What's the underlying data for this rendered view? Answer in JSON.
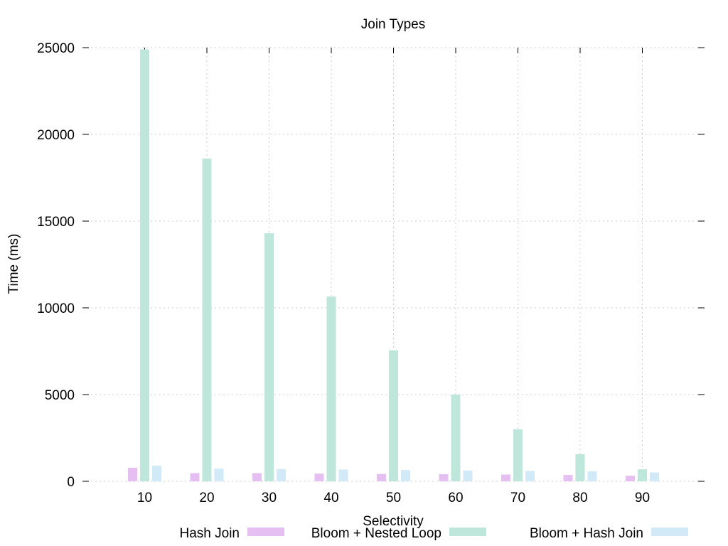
{
  "chart_data": {
    "type": "bar",
    "title": "Join Types",
    "xlabel": "Selectivity",
    "ylabel": "Time (ms)",
    "categories": [
      "10",
      "20",
      "30",
      "40",
      "50",
      "60",
      "70",
      "80",
      "90"
    ],
    "ylim": [
      0,
      25000
    ],
    "yticks": [
      "0",
      "5000",
      "10000",
      "15000",
      "20000",
      "25000"
    ],
    "grid": true,
    "legend_position": "bottom",
    "series": [
      {
        "name": "Hash Join",
        "color": "#e6bff2",
        "values": [
          780,
          470,
          470,
          440,
          420,
          410,
          390,
          360,
          320
        ]
      },
      {
        "name": "Bloom + Nested Loop",
        "color": "#bfe6da",
        "values": [
          24900,
          18600,
          14300,
          10650,
          7550,
          5000,
          3000,
          1570,
          690
        ]
      },
      {
        "name": "Bloom + Hash Join",
        "color": "#d2eaf8",
        "values": [
          900,
          730,
          710,
          680,
          650,
          620,
          600,
          580,
          510
        ]
      }
    ]
  }
}
